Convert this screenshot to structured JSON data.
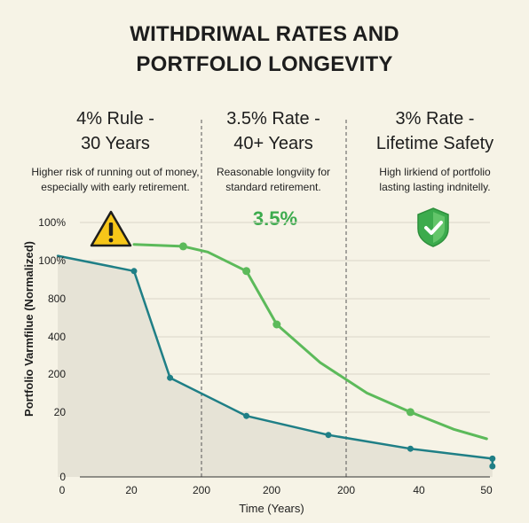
{
  "title_line1": "WITHDRIWAL RATES AND",
  "title_line2": "PORTFOLIO LONGEVITY",
  "columns": [
    {
      "heading1": "4% Rule -",
      "heading2": "30 Years",
      "desc1": "Higher risk of running out of money,",
      "desc2": "especially with early retirement.",
      "icon": "warning-icon"
    },
    {
      "heading1": "3.5% Rate -",
      "heading2": "40+ Years",
      "desc1": "Reasonable longviity for",
      "desc2": "standard retirement.",
      "icon": ""
    },
    {
      "heading1": "3% Rate -",
      "heading2": "Lifetime Safety",
      "desc1": "High lirkiend of portfolio",
      "desc2": "lasting lasting indnitelly.",
      "icon": "shield-check-icon"
    }
  ],
  "highlight_label": "3.5%",
  "colors": {
    "teal": "#1f7f86",
    "green": "#5cba5a",
    "fill": "#e6e3d6",
    "grid": "#d9d6c8"
  },
  "chart_data": {
    "type": "line",
    "xlabel": "Time (Years)",
    "ylabel": "Portfolio  Varmfilue (Normalized)",
    "x_tick_labels": [
      "0",
      "20",
      "200",
      "200",
      "200",
      "40",
      "50"
    ],
    "y_tick_labels": [
      "0",
      "20",
      "200",
      "400",
      "800",
      "100%",
      "100%"
    ],
    "xlim": [
      0,
      50
    ],
    "grid": true,
    "series": [
      {
        "name": "",
        "color": "#1f7f86",
        "filled": true,
        "x": [
          -2.7,
          6.6,
          11.0,
          20.3,
          30.3,
          40.3,
          50.3,
          50.3
        ],
        "y": [
          5.8,
          5.4,
          2.6,
          1.6,
          1.1,
          0.74,
          0.48,
          0.28
        ],
        "markers": [
          false,
          true,
          true,
          true,
          true,
          true,
          true,
          true
        ]
      },
      {
        "name": "",
        "color": "#5cba5a",
        "filled": false,
        "x": [
          6.6,
          12.6,
          15.6,
          20.3,
          24.0,
          29.3,
          35.0,
          40.3,
          45.6,
          49.6
        ],
        "y": [
          6.1,
          6.05,
          5.9,
          5.4,
          4.0,
          3.0,
          2.2,
          1.7,
          1.25,
          1.0
        ],
        "markers": [
          false,
          true,
          false,
          true,
          true,
          false,
          false,
          true,
          false,
          false
        ]
      }
    ]
  }
}
